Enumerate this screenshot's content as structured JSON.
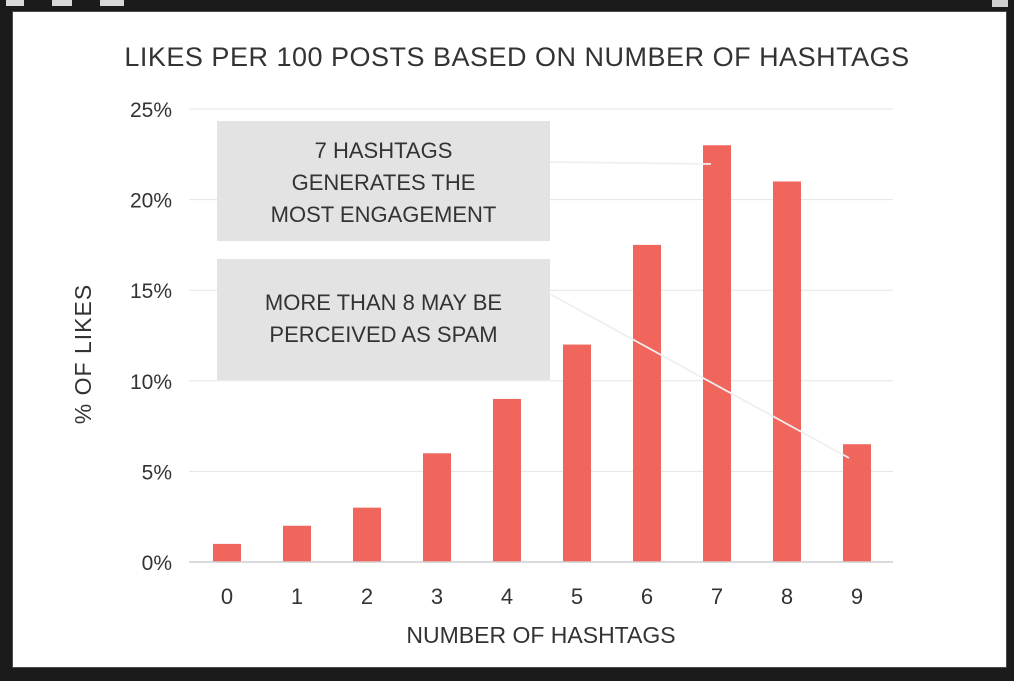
{
  "chart_data": {
    "type": "bar",
    "title": "LIKES PER 100 POSTS BASED ON NUMBER OF HASHTAGS",
    "xlabel": "NUMBER OF HASHTAGS",
    "ylabel": "% OF LIKES",
    "categories": [
      "0",
      "1",
      "2",
      "3",
      "4",
      "5",
      "6",
      "7",
      "8",
      "9"
    ],
    "values": [
      1,
      2,
      3,
      6,
      9,
      12,
      17.5,
      23,
      21,
      6.5
    ],
    "ylim": [
      0,
      25
    ],
    "yticks": [
      0,
      5,
      10,
      15,
      20,
      25
    ],
    "ytick_labels": [
      "0%",
      "5%",
      "10%",
      "15%",
      "20%",
      "25%"
    ],
    "grid": true,
    "colors": {
      "bar": "#f0655c",
      "grid": "#e6e6e6",
      "annotation_bg": "#e3e3e3",
      "text": "#333333"
    },
    "annotations": [
      {
        "lines": [
          "7 HASHTAGS",
          "GENERATES THE",
          "MOST ENGAGEMENT"
        ],
        "points_to": "7"
      },
      {
        "lines": [
          "MORE THAN 8 MAY BE",
          "PERCEIVED AS SPAM"
        ],
        "points_to": "9"
      }
    ]
  }
}
